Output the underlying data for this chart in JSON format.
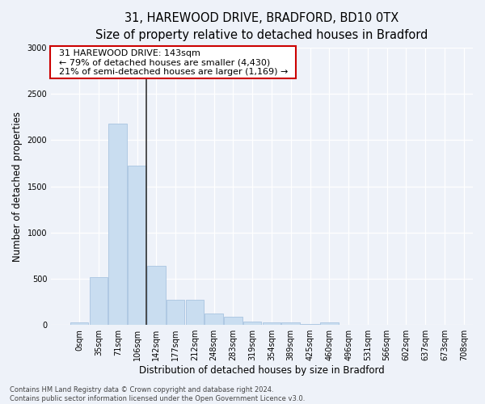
{
  "title_line1": "31, HAREWOOD DRIVE, BRADFORD, BD10 0TX",
  "title_line2": "Size of property relative to detached houses in Bradford",
  "xlabel": "Distribution of detached houses by size in Bradford",
  "ylabel": "Number of detached properties",
  "footnote": "Contains HM Land Registry data © Crown copyright and database right 2024.\nContains public sector information licensed under the Open Government Licence v3.0.",
  "annotation_title": "31 HAREWOOD DRIVE: 143sqm",
  "annotation_line2": "← 79% of detached houses are smaller (4,430)",
  "annotation_line3": "21% of semi-detached houses are larger (1,169) →",
  "bar_values": [
    30,
    520,
    2180,
    1720,
    640,
    270,
    270,
    120,
    90,
    40,
    30,
    30,
    10,
    30,
    5,
    5,
    5,
    5,
    5,
    5
  ],
  "bin_labels": [
    "0sqm",
    "35sqm",
    "71sqm",
    "106sqm",
    "142sqm",
    "177sqm",
    "212sqm",
    "248sqm",
    "283sqm",
    "319sqm",
    "354sqm",
    "389sqm",
    "425sqm",
    "460sqm",
    "496sqm",
    "531sqm",
    "566sqm",
    "602sqm",
    "637sqm",
    "673sqm",
    "708sqm"
  ],
  "property_line_x": 3.5,
  "bar_color": "#c9ddf0",
  "bar_edge_color": "#a8c4e0",
  "ylim": [
    0,
    3000
  ],
  "yticks": [
    0,
    500,
    1000,
    1500,
    2000,
    2500,
    3000
  ],
  "background_color": "#eef2f9",
  "grid_color": "#ffffff",
  "annotation_box_facecolor": "#ffffff",
  "annotation_box_edgecolor": "#cc0000",
  "title_fontsize": 10.5,
  "subtitle_fontsize": 9.5,
  "axis_label_fontsize": 8.5,
  "tick_fontsize": 7,
  "annotation_fontsize": 8,
  "footnote_fontsize": 6
}
